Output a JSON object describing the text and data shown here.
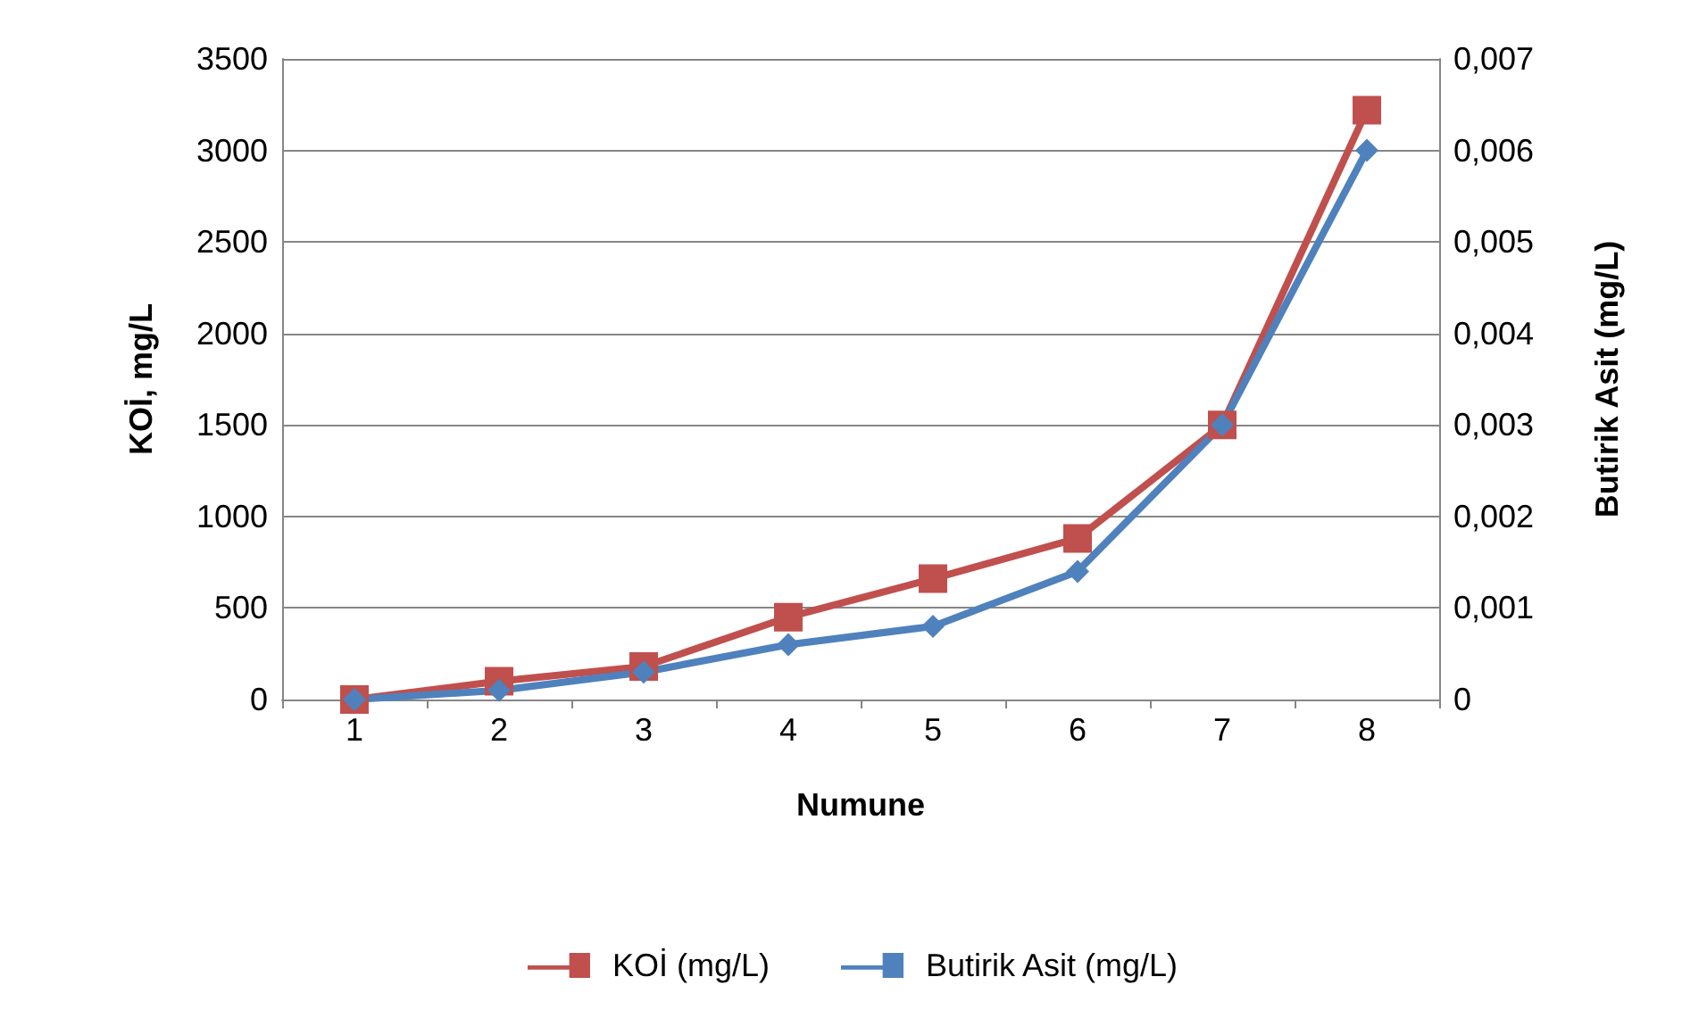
{
  "chart_data": {
    "type": "line",
    "xlabel": "Numune",
    "ylabel": "KOİ, mg/L",
    "y2label": "Butirik Asit (mg/L)",
    "categories": [
      "1",
      "2",
      "3",
      "4",
      "5",
      "6",
      "7",
      "8"
    ],
    "series": [
      {
        "name": "KOİ (mg/L)",
        "color": "#c0504d",
        "marker": "square",
        "values": [
          0,
          100,
          180,
          450,
          660,
          880,
          1500,
          3220
        ]
      },
      {
        "name": "Butirik Asit (mg/L)",
        "color": "#4f81bd",
        "marker": "diamond",
        "axis": "y2",
        "values": [
          0,
          0.0001,
          0.0003,
          0.0006,
          0.0008,
          0.0014,
          0.003,
          0.006
        ]
      }
    ],
    "ylim": [
      0,
      3500
    ],
    "yticks": [
      0,
      500,
      1000,
      1500,
      2000,
      2500,
      3000,
      3500
    ],
    "y2lim": [
      0,
      0.007
    ],
    "y2ticks": [
      0,
      {
        "value": 0.001,
        "label": "0,001"
      },
      {
        "value": 0.002,
        "label": "0,002"
      },
      {
        "value": 0.003,
        "label": "0,003"
      },
      {
        "value": 0.004,
        "label": "0,004"
      },
      {
        "value": 0.005,
        "label": "0,005"
      },
      {
        "value": 0.006,
        "label": "0,006"
      },
      {
        "value": 0.007,
        "label": "0,007"
      }
    ],
    "grid": "y",
    "legend": "bottom",
    "line_style": "solid"
  }
}
